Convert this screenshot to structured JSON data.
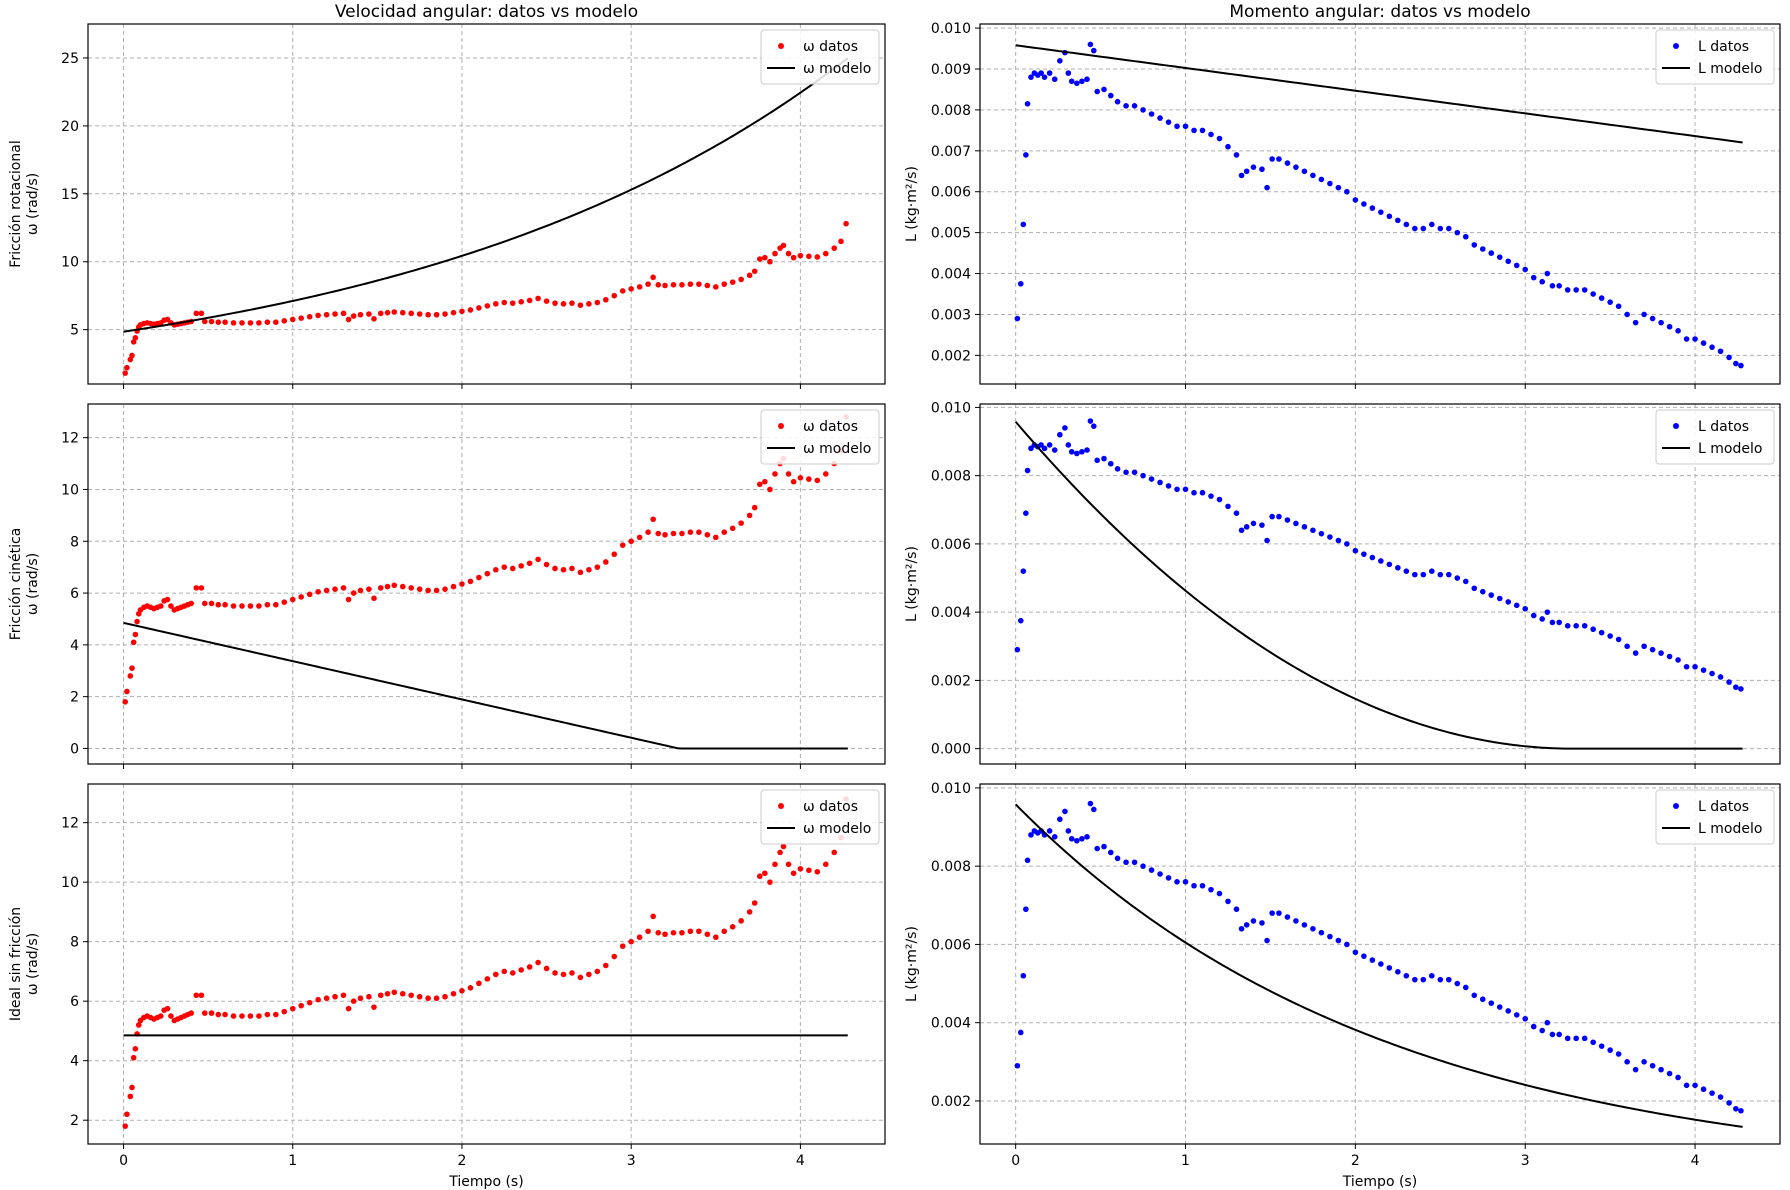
{
  "figure": {
    "colors": {
      "datos_omega": "#ff0000",
      "datos_L": "#0000ff",
      "modelo": "#000000",
      "grid": "#b0b0b0"
    }
  },
  "chart_data": [
    {
      "type": "scatter",
      "row": 0,
      "col": 0,
      "title": "Velocidad angular: datos vs modelo",
      "ylabel": "Fricción rotacional\nω (rad/s)",
      "xlabel": "",
      "xlim": [
        -0.21,
        4.5
      ],
      "ylim": [
        1.0,
        27.5
      ],
      "xticks": [
        0,
        1,
        2,
        3,
        4
      ],
      "yticks": [
        5,
        10,
        15,
        20,
        25
      ],
      "ytick_labels": [
        "5",
        "10",
        "15",
        "20",
        "25"
      ],
      "show_xtick_labels": false,
      "grid": true,
      "legend": "top-right",
      "data_var": "omega",
      "series": [
        {
          "name": "ω datos",
          "kind": "scatter",
          "color": "#ff0000"
        },
        {
          "name": "ω modelo",
          "kind": "line",
          "color": "#000000",
          "model": "exp_growth",
          "params": {
            "v0": 4.85,
            "k": 0.383
          },
          "x": [
            0,
            4.28
          ]
        }
      ]
    },
    {
      "type": "scatter",
      "row": 0,
      "col": 1,
      "title": "Momento angular: datos vs modelo",
      "ylabel": "L (kg·m²/s)",
      "xlabel": "",
      "xlim": [
        -0.21,
        4.5
      ],
      "ylim": [
        0.0013,
        0.0101
      ],
      "xticks": [
        0,
        1,
        2,
        3,
        4
      ],
      "yticks": [
        0.002,
        0.003,
        0.004,
        0.005,
        0.006,
        0.007,
        0.008,
        0.009,
        0.01
      ],
      "ytick_labels": [
        "0.002",
        "0.003",
        "0.004",
        "0.005",
        "0.006",
        "0.007",
        "0.008",
        "0.009",
        "0.010"
      ],
      "show_xtick_labels": false,
      "grid": true,
      "legend": "top-right",
      "data_var": "L",
      "series": [
        {
          "name": "L datos",
          "kind": "scatter",
          "color": "#0000ff"
        },
        {
          "name": "L modelo",
          "kind": "line",
          "color": "#000000",
          "model": "linear",
          "params": {
            "v0": 0.00958,
            "slope": -0.000555
          },
          "x": [
            0,
            4.28
          ]
        }
      ]
    },
    {
      "type": "scatter",
      "row": 1,
      "col": 0,
      "title": "",
      "ylabel": "Fricción cinética\nω (rad/s)",
      "xlabel": "",
      "xlim": [
        -0.21,
        4.5
      ],
      "ylim": [
        -0.6,
        13.3
      ],
      "xticks": [
        0,
        1,
        2,
        3,
        4
      ],
      "yticks": [
        0,
        2,
        4,
        6,
        8,
        10,
        12
      ],
      "ytick_labels": [
        "0",
        "2",
        "4",
        "6",
        "8",
        "10",
        "12"
      ],
      "show_xtick_labels": false,
      "grid": true,
      "legend": "top-right",
      "data_var": "omega",
      "series": [
        {
          "name": "ω datos",
          "kind": "scatter",
          "color": "#ff0000"
        },
        {
          "name": "ω modelo",
          "kind": "line",
          "color": "#000000",
          "model": "linear_clip",
          "params": {
            "v0": 4.85,
            "t_stop": 3.28
          },
          "x": [
            0,
            4.28
          ]
        }
      ]
    },
    {
      "type": "scatter",
      "row": 1,
      "col": 1,
      "title": "",
      "ylabel": "L (kg·m²/s)",
      "xlabel": "",
      "xlim": [
        -0.21,
        4.5
      ],
      "ylim": [
        -0.00045,
        0.0101
      ],
      "xticks": [
        0,
        1,
        2,
        3,
        4
      ],
      "yticks": [
        0,
        0.002,
        0.004,
        0.006,
        0.008,
        0.01
      ],
      "ytick_labels": [
        "0.000",
        "0.002",
        "0.004",
        "0.006",
        "0.008",
        "0.010"
      ],
      "show_xtick_labels": false,
      "grid": true,
      "legend": "top-right",
      "data_var": "L",
      "series": [
        {
          "name": "L datos",
          "kind": "scatter",
          "color": "#0000ff"
        },
        {
          "name": "L modelo",
          "kind": "line",
          "color": "#000000",
          "model": "quad_clip",
          "params": {
            "v0": 0.00958,
            "t_stop": 3.28
          },
          "x": [
            0,
            4.28
          ]
        }
      ]
    },
    {
      "type": "scatter",
      "row": 2,
      "col": 0,
      "title": "",
      "ylabel": "Ideal sin fricción\nω (rad/s)",
      "xlabel": "Tiempo (s)",
      "xlim": [
        -0.21,
        4.5
      ],
      "ylim": [
        1.2,
        13.3
      ],
      "xticks": [
        0,
        1,
        2,
        3,
        4
      ],
      "yticks": [
        2,
        4,
        6,
        8,
        10,
        12
      ],
      "ytick_labels": [
        "2",
        "4",
        "6",
        "8",
        "10",
        "12"
      ],
      "show_xtick_labels": true,
      "grid": true,
      "legend": "top-right",
      "data_var": "omega",
      "series": [
        {
          "name": "ω datos",
          "kind": "scatter",
          "color": "#ff0000"
        },
        {
          "name": "ω modelo",
          "kind": "line",
          "color": "#000000",
          "model": "const",
          "params": {
            "v0": 4.85
          },
          "x": [
            0,
            4.28
          ]
        }
      ]
    },
    {
      "type": "scatter",
      "row": 2,
      "col": 1,
      "title": "",
      "ylabel": "L (kg·m²/s)",
      "xlabel": "Tiempo (s)",
      "xlim": [
        -0.21,
        4.5
      ],
      "ylim": [
        0.0009,
        0.0101
      ],
      "xticks": [
        0,
        1,
        2,
        3,
        4
      ],
      "yticks": [
        0.002,
        0.004,
        0.006,
        0.008,
        0.01
      ],
      "ytick_labels": [
        "0.002",
        "0.004",
        "0.006",
        "0.008",
        "0.010"
      ],
      "show_xtick_labels": true,
      "grid": true,
      "legend": "top-right",
      "data_var": "L",
      "series": [
        {
          "name": "L datos",
          "kind": "scatter",
          "color": "#0000ff"
        },
        {
          "name": "L modelo",
          "kind": "line",
          "color": "#000000",
          "model": "exp_decay",
          "params": {
            "v0": 0.00958,
            "k": 0.46
          },
          "x": [
            0,
            4.28
          ]
        }
      ]
    }
  ],
  "measured": {
    "omega": [
      [
        0.01,
        1.8
      ],
      [
        0.02,
        2.2
      ],
      [
        0.04,
        2.8
      ],
      [
        0.05,
        3.1
      ],
      [
        0.06,
        4.1
      ],
      [
        0.07,
        4.4
      ],
      [
        0.08,
        4.9
      ],
      [
        0.09,
        5.2
      ],
      [
        0.1,
        5.35
      ],
      [
        0.12,
        5.45
      ],
      [
        0.14,
        5.5
      ],
      [
        0.16,
        5.45
      ],
      [
        0.18,
        5.4
      ],
      [
        0.2,
        5.45
      ],
      [
        0.22,
        5.5
      ],
      [
        0.24,
        5.7
      ],
      [
        0.26,
        5.75
      ],
      [
        0.28,
        5.5
      ],
      [
        0.3,
        5.35
      ],
      [
        0.32,
        5.4
      ],
      [
        0.34,
        5.45
      ],
      [
        0.36,
        5.5
      ],
      [
        0.38,
        5.55
      ],
      [
        0.4,
        5.6
      ],
      [
        0.43,
        6.2
      ],
      [
        0.46,
        6.2
      ],
      [
        0.48,
        5.6
      ],
      [
        0.52,
        5.6
      ],
      [
        0.56,
        5.55
      ],
      [
        0.6,
        5.55
      ],
      [
        0.65,
        5.5
      ],
      [
        0.7,
        5.5
      ],
      [
        0.75,
        5.5
      ],
      [
        0.8,
        5.5
      ],
      [
        0.85,
        5.55
      ],
      [
        0.9,
        5.55
      ],
      [
        0.95,
        5.65
      ],
      [
        1.0,
        5.75
      ],
      [
        1.05,
        5.85
      ],
      [
        1.1,
        5.95
      ],
      [
        1.15,
        6.05
      ],
      [
        1.2,
        6.1
      ],
      [
        1.25,
        6.15
      ],
      [
        1.3,
        6.2
      ],
      [
        1.33,
        5.75
      ],
      [
        1.36,
        6.0
      ],
      [
        1.4,
        6.1
      ],
      [
        1.45,
        6.15
      ],
      [
        1.48,
        5.8
      ],
      [
        1.52,
        6.2
      ],
      [
        1.56,
        6.25
      ],
      [
        1.6,
        6.3
      ],
      [
        1.65,
        6.25
      ],
      [
        1.7,
        6.2
      ],
      [
        1.75,
        6.15
      ],
      [
        1.8,
        6.1
      ],
      [
        1.85,
        6.1
      ],
      [
        1.9,
        6.15
      ],
      [
        1.95,
        6.25
      ],
      [
        2.0,
        6.35
      ],
      [
        2.05,
        6.45
      ],
      [
        2.1,
        6.6
      ],
      [
        2.15,
        6.75
      ],
      [
        2.2,
        6.9
      ],
      [
        2.25,
        7.0
      ],
      [
        2.3,
        6.95
      ],
      [
        2.35,
        7.05
      ],
      [
        2.4,
        7.15
      ],
      [
        2.45,
        7.3
      ],
      [
        2.5,
        7.1
      ],
      [
        2.55,
        6.95
      ],
      [
        2.6,
        6.9
      ],
      [
        2.65,
        6.95
      ],
      [
        2.7,
        6.8
      ],
      [
        2.75,
        6.9
      ],
      [
        2.8,
        7.0
      ],
      [
        2.85,
        7.2
      ],
      [
        2.9,
        7.5
      ],
      [
        2.95,
        7.85
      ],
      [
        3.0,
        8.0
      ],
      [
        3.05,
        8.15
      ],
      [
        3.1,
        8.35
      ],
      [
        3.13,
        8.85
      ],
      [
        3.16,
        8.3
      ],
      [
        3.2,
        8.25
      ],
      [
        3.25,
        8.3
      ],
      [
        3.3,
        8.3
      ],
      [
        3.35,
        8.35
      ],
      [
        3.4,
        8.35
      ],
      [
        3.45,
        8.25
      ],
      [
        3.5,
        8.15
      ],
      [
        3.55,
        8.35
      ],
      [
        3.6,
        8.5
      ],
      [
        3.65,
        8.7
      ],
      [
        3.7,
        9.0
      ],
      [
        3.73,
        9.3
      ],
      [
        3.76,
        10.2
      ],
      [
        3.79,
        10.3
      ],
      [
        3.82,
        10.0
      ],
      [
        3.85,
        10.6
      ],
      [
        3.88,
        11.0
      ],
      [
        3.9,
        11.2
      ],
      [
        3.93,
        10.6
      ],
      [
        3.96,
        10.3
      ],
      [
        4.0,
        10.45
      ],
      [
        4.05,
        10.4
      ],
      [
        4.1,
        10.35
      ],
      [
        4.15,
        10.6
      ],
      [
        4.2,
        11.0
      ],
      [
        4.24,
        11.5
      ],
      [
        4.27,
        12.8
      ]
    ],
    "L": [
      [
        0.01,
        0.0029
      ],
      [
        0.03,
        0.00375
      ],
      [
        0.045,
        0.0052
      ],
      [
        0.06,
        0.0069
      ],
      [
        0.07,
        0.00815
      ],
      [
        0.09,
        0.0088
      ],
      [
        0.11,
        0.0089
      ],
      [
        0.13,
        0.00885
      ],
      [
        0.15,
        0.0089
      ],
      [
        0.17,
        0.0088
      ],
      [
        0.2,
        0.0089
      ],
      [
        0.23,
        0.00875
      ],
      [
        0.26,
        0.0092
      ],
      [
        0.29,
        0.0094
      ],
      [
        0.31,
        0.0089
      ],
      [
        0.33,
        0.0087
      ],
      [
        0.36,
        0.00865
      ],
      [
        0.39,
        0.0087
      ],
      [
        0.42,
        0.00875
      ],
      [
        0.44,
        0.0096
      ],
      [
        0.46,
        0.00945
      ],
      [
        0.48,
        0.00845
      ],
      [
        0.52,
        0.0085
      ],
      [
        0.56,
        0.00835
      ],
      [
        0.6,
        0.0082
      ],
      [
        0.65,
        0.0081
      ],
      [
        0.7,
        0.0081
      ],
      [
        0.75,
        0.008
      ],
      [
        0.8,
        0.0079
      ],
      [
        0.85,
        0.0078
      ],
      [
        0.9,
        0.0077
      ],
      [
        0.95,
        0.0076
      ],
      [
        1.0,
        0.0076
      ],
      [
        1.05,
        0.0075
      ],
      [
        1.1,
        0.0075
      ],
      [
        1.15,
        0.0074
      ],
      [
        1.2,
        0.0073
      ],
      [
        1.25,
        0.0071
      ],
      [
        1.3,
        0.0069
      ],
      [
        1.33,
        0.0064
      ],
      [
        1.36,
        0.0065
      ],
      [
        1.4,
        0.0066
      ],
      [
        1.45,
        0.00655
      ],
      [
        1.48,
        0.0061
      ],
      [
        1.51,
        0.0068
      ],
      [
        1.55,
        0.0068
      ],
      [
        1.6,
        0.0067
      ],
      [
        1.65,
        0.0066
      ],
      [
        1.7,
        0.0065
      ],
      [
        1.75,
        0.0064
      ],
      [
        1.8,
        0.0063
      ],
      [
        1.85,
        0.0062
      ],
      [
        1.9,
        0.0061
      ],
      [
        1.95,
        0.006
      ],
      [
        2.0,
        0.0058
      ],
      [
        2.05,
        0.0057
      ],
      [
        2.1,
        0.0056
      ],
      [
        2.15,
        0.0055
      ],
      [
        2.2,
        0.0054
      ],
      [
        2.25,
        0.0053
      ],
      [
        2.3,
        0.0052
      ],
      [
        2.35,
        0.0051
      ],
      [
        2.4,
        0.0051
      ],
      [
        2.45,
        0.0052
      ],
      [
        2.5,
        0.0051
      ],
      [
        2.55,
        0.0051
      ],
      [
        2.6,
        0.005
      ],
      [
        2.65,
        0.0049
      ],
      [
        2.7,
        0.0047
      ],
      [
        2.75,
        0.0046
      ],
      [
        2.8,
        0.0045
      ],
      [
        2.85,
        0.0044
      ],
      [
        2.9,
        0.0043
      ],
      [
        2.95,
        0.0042
      ],
      [
        3.0,
        0.0041
      ],
      [
        3.05,
        0.0039
      ],
      [
        3.1,
        0.0038
      ],
      [
        3.13,
        0.004
      ],
      [
        3.16,
        0.0037
      ],
      [
        3.2,
        0.0037
      ],
      [
        3.25,
        0.0036
      ],
      [
        3.3,
        0.0036
      ],
      [
        3.35,
        0.0036
      ],
      [
        3.4,
        0.0035
      ],
      [
        3.45,
        0.0034
      ],
      [
        3.5,
        0.0033
      ],
      [
        3.55,
        0.0032
      ],
      [
        3.6,
        0.003
      ],
      [
        3.65,
        0.0028
      ],
      [
        3.7,
        0.003
      ],
      [
        3.75,
        0.0029
      ],
      [
        3.8,
        0.0028
      ],
      [
        3.85,
        0.0027
      ],
      [
        3.9,
        0.0026
      ],
      [
        3.95,
        0.0024
      ],
      [
        4.0,
        0.0024
      ],
      [
        4.05,
        0.0023
      ],
      [
        4.1,
        0.0022
      ],
      [
        4.15,
        0.0021
      ],
      [
        4.2,
        0.00195
      ],
      [
        4.24,
        0.0018
      ],
      [
        4.27,
        0.00175
      ]
    ]
  }
}
